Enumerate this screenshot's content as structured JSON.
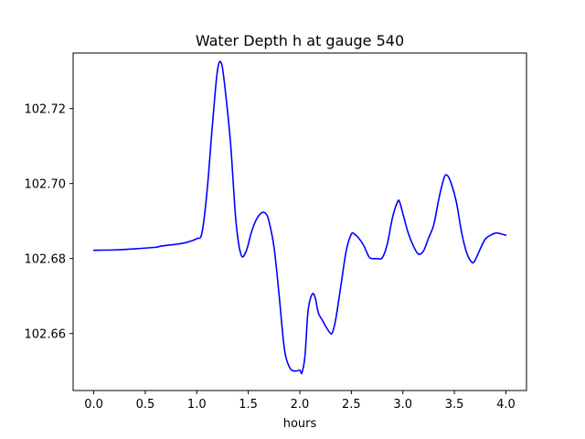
{
  "chart_data": {
    "type": "line",
    "title": "Water Depth h at gauge 540",
    "xlabel": "hours",
    "ylabel": "",
    "xlim": [
      -0.2,
      4.2
    ],
    "ylim": [
      102.6448,
      102.7348
    ],
    "xticks": [
      0.0,
      0.5,
      1.0,
      1.5,
      2.0,
      2.5,
      3.0,
      3.5,
      4.0
    ],
    "xtick_labels": [
      "0.0",
      "0.5",
      "1.0",
      "1.5",
      "2.0",
      "2.5",
      "3.0",
      "3.5",
      "4.0"
    ],
    "yticks": [
      102.66,
      102.68,
      102.7,
      102.72
    ],
    "ytick_labels": [
      "102.66",
      "102.68",
      "102.70",
      "102.72"
    ],
    "grid": false,
    "legend": "none",
    "series": [
      {
        "color": "#0000ff",
        "x": [
          0.0,
          0.2,
          0.4,
          0.6,
          0.65,
          0.8,
          0.9,
          1.0,
          1.05,
          1.1,
          1.15,
          1.2,
          1.24,
          1.28,
          1.33,
          1.38,
          1.43,
          1.48,
          1.53,
          1.58,
          1.63,
          1.67,
          1.7,
          1.75,
          1.8,
          1.85,
          1.9,
          1.95,
          2.0,
          2.02,
          2.05,
          2.08,
          2.12,
          2.15,
          2.18,
          2.22,
          2.26,
          2.3,
          2.32,
          2.35,
          2.4,
          2.45,
          2.5,
          2.53,
          2.57,
          2.62,
          2.67,
          2.7,
          2.75,
          2.8,
          2.85,
          2.9,
          2.95,
          2.97,
          3.0,
          3.05,
          3.1,
          3.15,
          3.2,
          3.25,
          3.3,
          3.35,
          3.4,
          3.43,
          3.47,
          3.52,
          3.57,
          3.62,
          3.67,
          3.7,
          3.75,
          3.8,
          3.85,
          3.9,
          3.95,
          4.0
        ],
        "y": [
          102.6822,
          102.6823,
          102.6826,
          102.683,
          102.6833,
          102.6838,
          102.6843,
          102.6853,
          102.6868,
          102.698,
          102.715,
          102.73,
          102.732,
          102.724,
          102.71,
          102.69,
          102.681,
          102.682,
          102.687,
          102.6905,
          102.6922,
          102.692,
          102.69,
          102.683,
          102.67,
          102.656,
          102.651,
          102.65,
          102.6502,
          102.6495,
          102.654,
          102.666,
          102.6705,
          102.6695,
          102.6655,
          102.6635,
          102.6615,
          102.66,
          102.6605,
          102.664,
          102.673,
          102.682,
          102.6865,
          102.6865,
          102.6855,
          102.6835,
          102.6805,
          102.68,
          102.68,
          102.6802,
          102.684,
          102.691,
          102.6952,
          102.695,
          102.692,
          102.687,
          102.6835,
          102.6812,
          102.682,
          102.6855,
          102.689,
          102.696,
          102.7015,
          102.7022,
          102.7,
          102.695,
          102.687,
          102.6815,
          102.679,
          102.6795,
          102.6825,
          102.6852,
          102.6862,
          102.6868,
          102.6866,
          102.6862
        ]
      }
    ]
  }
}
